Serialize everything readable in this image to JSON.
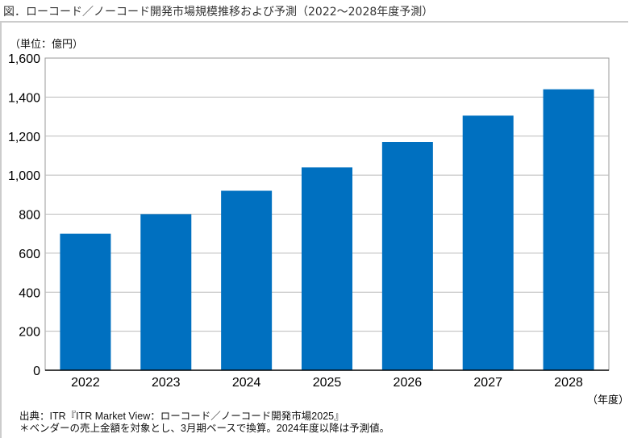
{
  "title": "図．ローコード／ノーコード開発市場規模推移および予測（2022〜2028年度予測）",
  "footnotes": [
    "出典：ITR『ITR Market View：ローコード／ノーコード開発市場2025』",
    "＊ベンダーの売上金額を対象とし、3月期ベースで換算。2024年度以降は予測値。"
  ],
  "chart_data": {
    "type": "bar",
    "title": "",
    "ylabel": "（単位：億円）",
    "xlabel": "（年度）",
    "categories": [
      "2022",
      "2023",
      "2024",
      "2025",
      "2026",
      "2027",
      "2028"
    ],
    "values": [
      700,
      800,
      920,
      1040,
      1170,
      1305,
      1440
    ],
    "ylim": [
      0,
      1600
    ],
    "yticks": [
      "0",
      "200",
      "400",
      "600",
      "800",
      "1,000",
      "1,200",
      "1,400",
      "1,600"
    ],
    "grid": true,
    "bar_color": "#0070C0"
  }
}
